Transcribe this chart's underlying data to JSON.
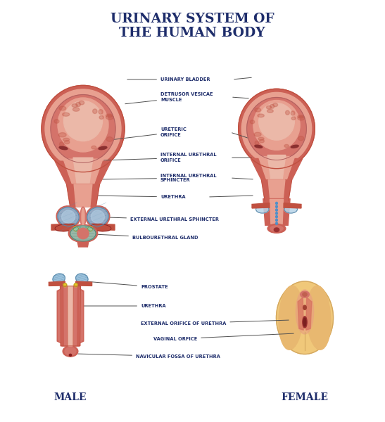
{
  "title_line1": "URINARY SYSTEM OF",
  "title_line2": "THE HUMAN BODY",
  "title_color": "#1e2d6b",
  "title_fontsize": 13.5,
  "background_color": "#ffffff",
  "label_fontsize": 4.8,
  "label_color": "#1e2d6b",
  "male_label": "MALE",
  "female_label": "FEMALE",
  "bladder_outer": "#cc6055",
  "bladder_border": "#c05040",
  "bladder_mid": "#d4736a",
  "bladder_inner_light": "#e8a090",
  "bladder_very_light": "#ebb8a8",
  "bladder_texture": "#c05545",
  "bladder_wall_pink": "#e0948a",
  "neck_color": "#d4736a",
  "prostate_blue": "#8ab8d8",
  "prostate_blue_dark": "#5a88a8",
  "prostate_blue_light": "#b8d4e8",
  "red_tube": "#c05040",
  "yellow_dot": "#e8c828",
  "sphincter_teal": "#90c8b8",
  "sphincter_teal_dark": "#508878",
  "female_skin": "#f0c87a",
  "female_skin_dark": "#d4a860",
  "female_skin_mid": "#e8b870",
  "line_color": "#666666",
  "line_width": 0.7
}
